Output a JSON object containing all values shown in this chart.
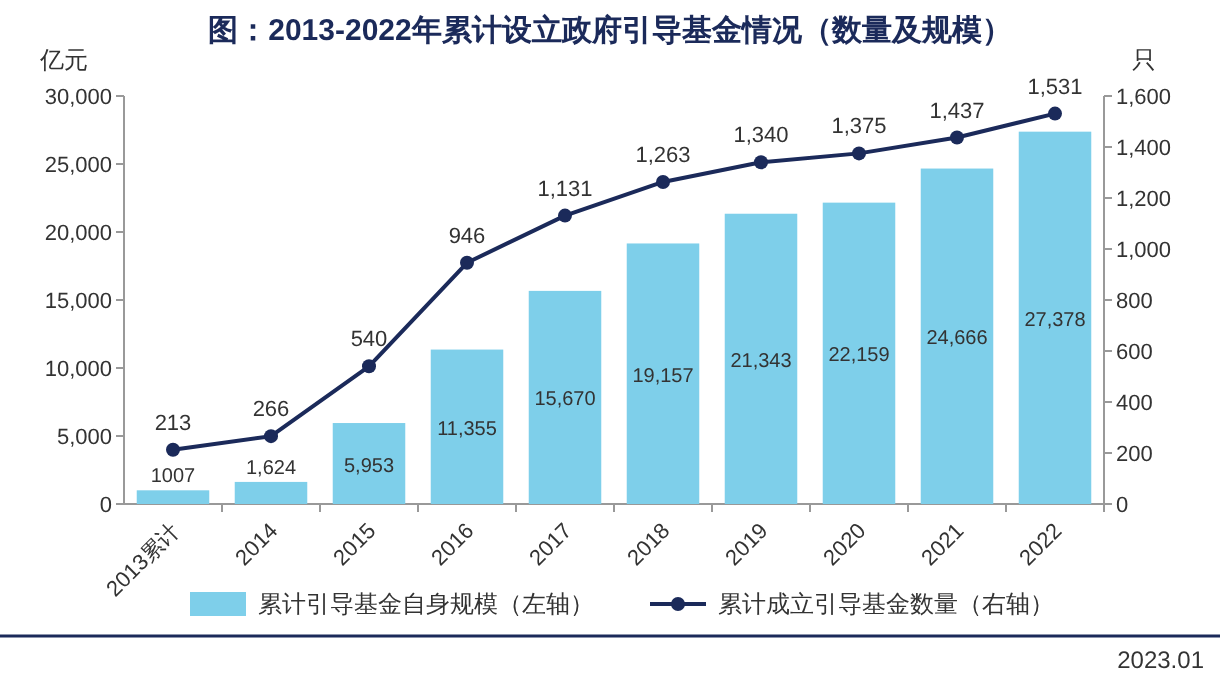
{
  "chart_data": {
    "type": "bar",
    "title": "图：2013-2022年累计设立政府引导基金情况（数量及规模）",
    "categories": [
      "2013累计",
      "2014",
      "2015",
      "2016",
      "2017",
      "2018",
      "2019",
      "2020",
      "2021",
      "2022"
    ],
    "series": [
      {
        "name": "累计引导基金自身规模（左轴）",
        "color": "#7ecfea",
        "values": [
          1007,
          1624,
          5953,
          11355,
          15670,
          19157,
          21343,
          22159,
          24666,
          27378
        ],
        "value_labels": [
          "1007",
          "1,624",
          "5,953",
          "11,355",
          "15,670",
          "19,157",
          "21,343",
          "22,159",
          "24,666",
          "27,378"
        ]
      },
      {
        "name": "累计成立引导基金数量（右轴）",
        "type": "line",
        "axis": "y2",
        "color": "#1b2a5a",
        "values": [
          213,
          266,
          540,
          946,
          1131,
          1263,
          1340,
          1375,
          1437,
          1531
        ],
        "value_labels": [
          "213",
          "266",
          "540",
          "946",
          "1,131",
          "1,263",
          "1,340",
          "1,375",
          "1,437",
          "1,531"
        ]
      }
    ],
    "ylabel": "亿元",
    "y2label": "只",
    "ylim": [
      0,
      30000
    ],
    "yticks": [
      0,
      {
        "value": 5000,
        "label": "5,000"
      },
      {
        "value": 10000,
        "label": "10,000"
      },
      {
        "value": 15000,
        "label": "15,000"
      },
      {
        "value": 20000,
        "label": "20,000"
      },
      {
        "value": 25000,
        "label": "25,000"
      },
      {
        "value": 30000,
        "label": "30,000"
      }
    ],
    "y2lim": [
      0,
      1600
    ],
    "y2ticks": [
      0,
      200,
      400,
      600,
      800,
      {
        "value": 1000,
        "label": "1,000"
      },
      {
        "value": 1200,
        "label": "1,200"
      },
      {
        "value": 1400,
        "label": "1,400"
      },
      {
        "value": 1600,
        "label": "1,600"
      }
    ],
    "marker": "circle",
    "line_style": "solid",
    "legend": "bottom",
    "annotations": [
      "2023.01"
    ]
  }
}
